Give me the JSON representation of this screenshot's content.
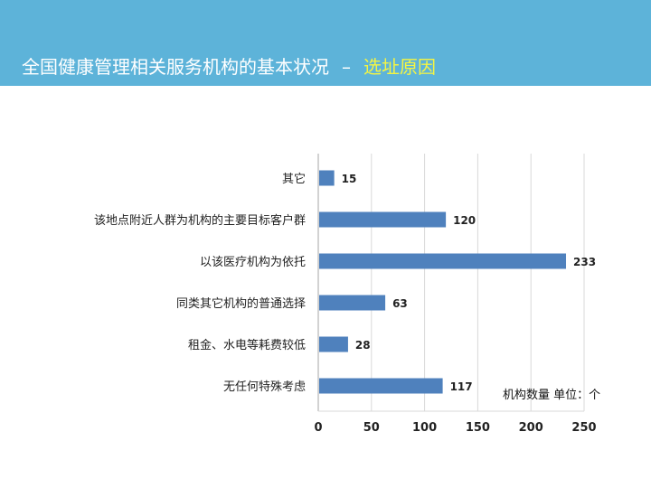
{
  "header": {
    "title_main": "全国健康管理相关服务机构的基本状况",
    "title_sep": "–",
    "title_highlight": "选址原因"
  },
  "colors": {
    "header_bg": "#5db3d9",
    "highlight": "#f5f542",
    "bar": "#4f81bd",
    "grid": "#d9d9d9"
  },
  "chart_data": {
    "type": "bar",
    "orientation": "horizontal",
    "categories": [
      "其它",
      "该地点附近人群为机构的主要目标客户群",
      "以该医疗机构为依托",
      "同类其它机构的普通选择",
      "租金、水电等耗费较低",
      "无任何特殊考虑"
    ],
    "values": [
      15,
      120,
      233,
      63,
      28,
      117
    ],
    "xlim": [
      0,
      250
    ],
    "xticks": [
      0,
      50,
      100,
      150,
      200,
      250
    ],
    "grid": true,
    "unit_note": "机构数量 单位：个"
  }
}
